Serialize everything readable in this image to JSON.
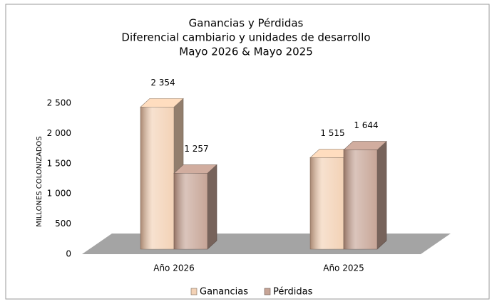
{
  "chart_data": {
    "type": "bar3d",
    "title": [
      "Ganancias y Pérdidas",
      "Diferencial cambiario y unidades de desarrollo",
      "Mayo 2026 &  Mayo 2025"
    ],
    "y_label": "MILLONES COLONIZADOS",
    "categories": [
      "Año 2026",
      "Año 2025"
    ],
    "series": [
      {
        "name": "Ganancias",
        "color": "#f3d2b6",
        "values": [
          2354,
          1515
        ],
        "value_labels": [
          "2 354",
          "1 515"
        ]
      },
      {
        "name": "Pérdidas",
        "color": "#c7a597",
        "values": [
          1257,
          1644
        ],
        "value_labels": [
          "1 257",
          "1 644"
        ]
      }
    ],
    "ylim": [
      0,
      2500
    ],
    "yticks": [
      0,
      {
        "value": 500,
        "label": "500"
      },
      {
        "value": 1000,
        "label": "1 000"
      },
      {
        "value": 1500,
        "label": "1 500"
      },
      {
        "value": 2000,
        "label": "2 000"
      },
      {
        "value": 2500,
        "label": "2 500"
      }
    ],
    "legend": "bottom"
  }
}
